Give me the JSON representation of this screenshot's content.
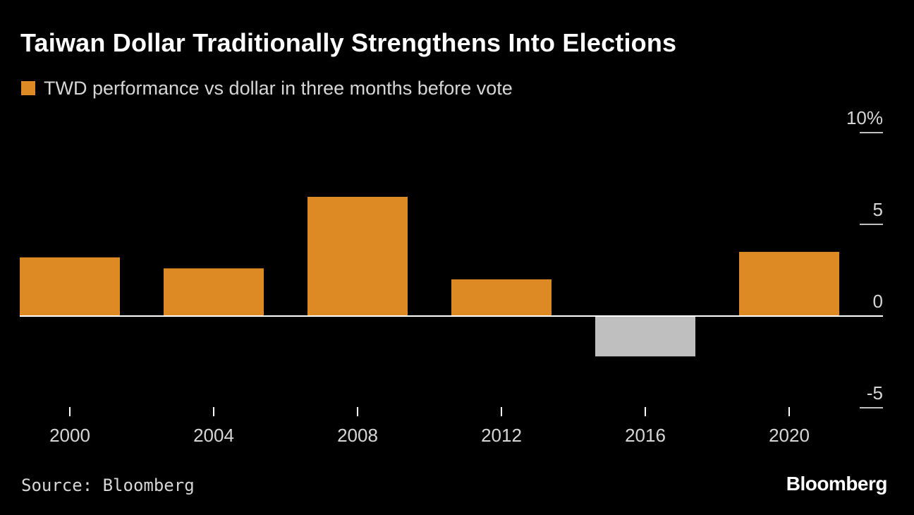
{
  "colors": {
    "background": "#000000",
    "positive": "#dd8a24",
    "negative": "#bfbfbf",
    "axis": "#ffffff",
    "text": "#ffffff",
    "muted_text": "#d6d6d6"
  },
  "chart_data": {
    "type": "bar",
    "title": "Taiwan Dollar Traditionally Strengthens Into Elections",
    "legend": [
      {
        "label": "TWD performance vs dollar in three months before vote",
        "color": "#dd8a24"
      }
    ],
    "categories": [
      "2000",
      "2004",
      "2008",
      "2012",
      "2016",
      "2020"
    ],
    "series": [
      {
        "name": "TWD performance vs dollar in three months before vote",
        "values": [
          3.2,
          2.6,
          6.5,
          2.0,
          -2.2,
          3.5
        ]
      }
    ],
    "ylim": [
      -5,
      10
    ],
    "yticks": [
      {
        "value": 10,
        "label": "10%"
      },
      {
        "value": 5,
        "label": "5"
      },
      {
        "value": 0,
        "label": "0"
      },
      {
        "value": -5,
        "label": "-5"
      }
    ],
    "xlabel": "",
    "ylabel": "",
    "y_axis_side": "right",
    "grid": false
  },
  "footer": {
    "source": "Source: Bloomberg",
    "brand": "Bloomberg"
  }
}
